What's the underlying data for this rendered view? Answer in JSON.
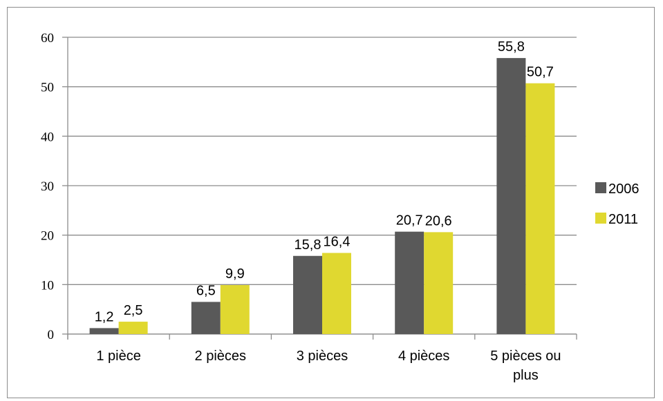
{
  "chart_data": {
    "type": "bar",
    "title": "",
    "xlabel": "",
    "ylabel": "",
    "ylim": [
      0,
      60
    ],
    "yticks": [
      0,
      10,
      20,
      30,
      40,
      50,
      60
    ],
    "grid": true,
    "legend_position": "right",
    "categories": [
      "1 pièce",
      "2 pièces",
      "3 pièces",
      "4 pièces",
      "5 pièces ou plus"
    ],
    "series": [
      {
        "name": "2006",
        "color": "#595959",
        "values": [
          1.2,
          6.5,
          15.8,
          20.7,
          55.8
        ],
        "labels": [
          "1,2",
          "6,5",
          "15,8",
          "20,7",
          "55,8"
        ]
      },
      {
        "name": "2011",
        "color": "#e0d830",
        "values": [
          2.5,
          9.9,
          16.4,
          20.6,
          50.7
        ],
        "labels": [
          "2,5",
          "9,9",
          "16,4",
          "20,6",
          "50,7"
        ]
      }
    ]
  }
}
